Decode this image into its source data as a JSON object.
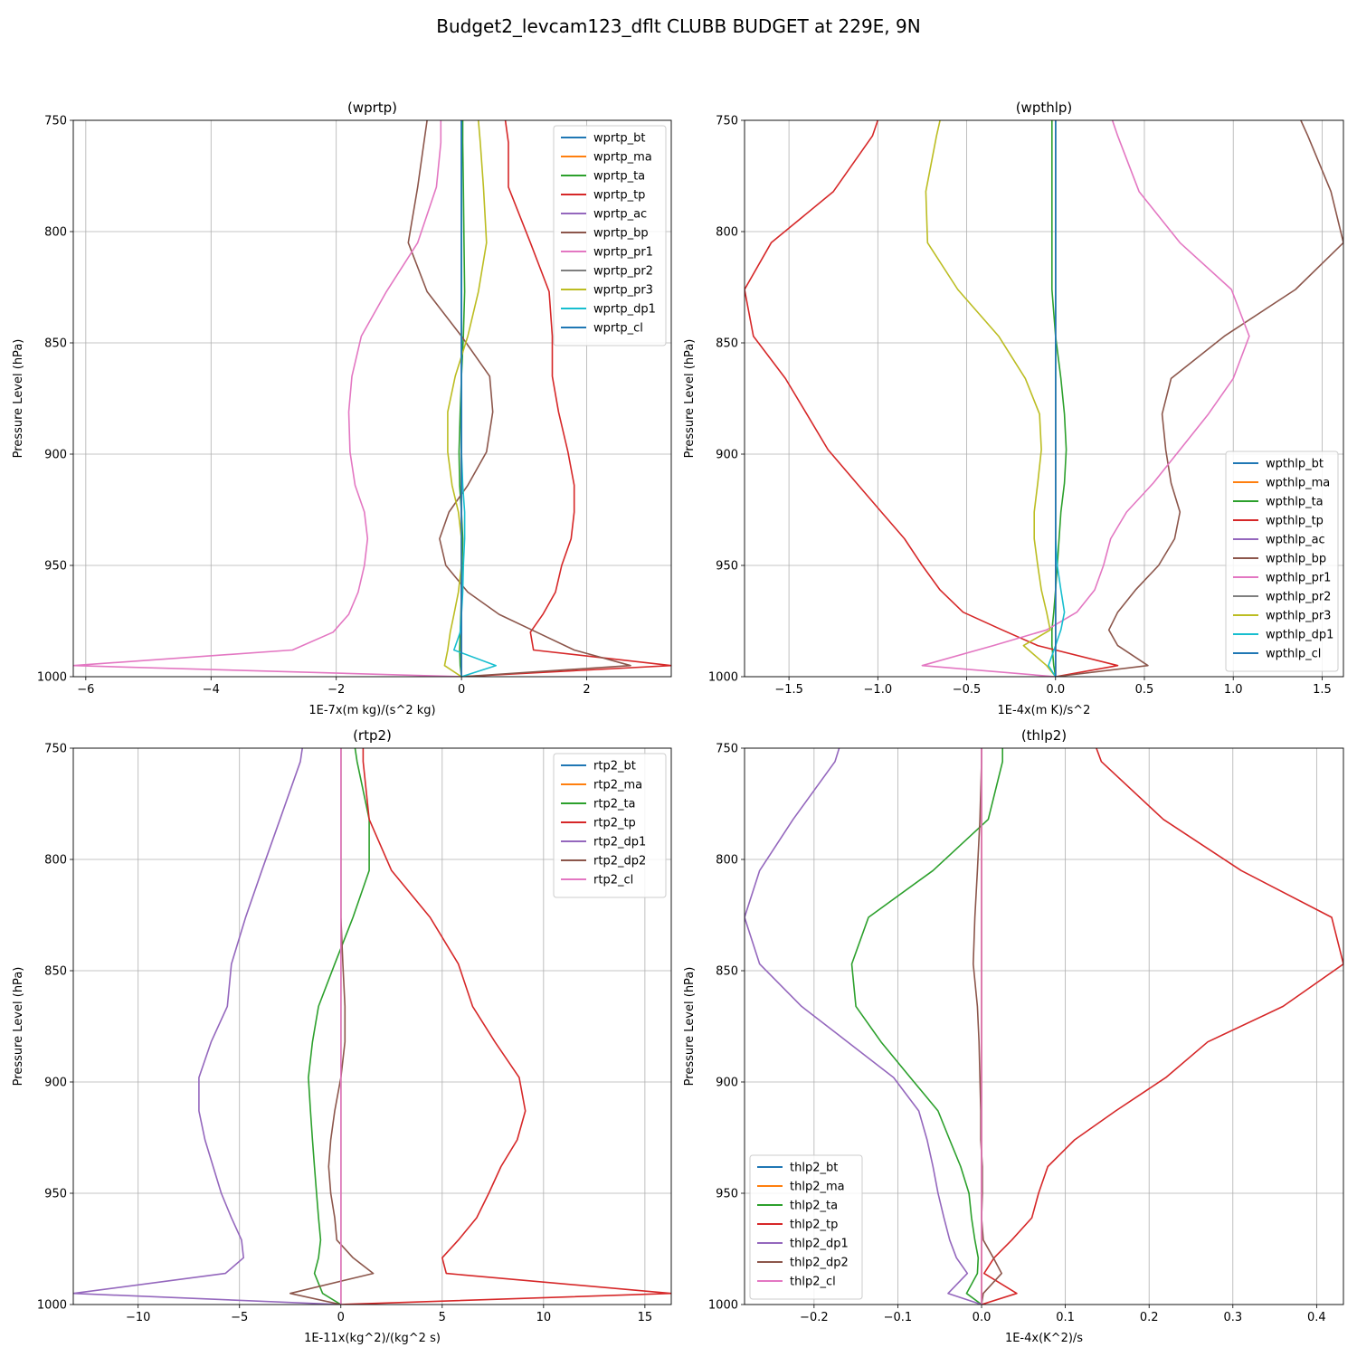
{
  "suptitle": "Budget2_levcam123_dflt CLUBB BUDGET at 229E, 9N",
  "chart_data": [
    {
      "type": "line",
      "title": "(wprtp)",
      "xlabel": "1E-7x(m kg)/(s^2 kg)",
      "ylabel": "Pressure Level (hPa)",
      "xlim": [
        -6.2,
        3.35
      ],
      "ylim": [
        1000,
        750
      ],
      "xticks": [
        -6,
        -4,
        -2,
        0,
        2
      ],
      "yticks": [
        750,
        800,
        850,
        900,
        950,
        1000
      ],
      "grid": true,
      "legend_loc": "upper right",
      "pressure_levels": [
        750,
        760,
        780,
        805,
        827,
        847,
        865,
        881,
        899,
        914,
        926,
        938,
        950,
        962,
        972,
        980,
        988,
        995,
        1000
      ],
      "series": [
        {
          "name": "wprtp_bt",
          "color": "#1f77b4",
          "values": [
            0,
            0,
            0,
            0,
            0,
            0,
            0,
            0,
            0,
            0,
            0,
            0,
            0,
            0,
            0,
            0,
            0,
            0,
            0
          ]
        },
        {
          "name": "wprtp_ma",
          "color": "#ff7f0e",
          "values": [
            0,
            0,
            0,
            0,
            0,
            0,
            0,
            0,
            0,
            0,
            0,
            0,
            0,
            0,
            0,
            0,
            0,
            0,
            0
          ]
        },
        {
          "name": "wprtp_ta",
          "color": "#2ca02c",
          "values": [
            0.02,
            0.02,
            0.03,
            0.04,
            0.05,
            0.03,
            0.0,
            -0.02,
            -0.04,
            -0.03,
            0.0,
            0.02,
            0.01,
            0.0,
            -0.01,
            -0.02,
            -0.03,
            -0.02,
            0
          ]
        },
        {
          "name": "wprtp_tp",
          "color": "#d62728",
          "values": [
            0.7,
            0.75,
            0.75,
            1.1,
            1.4,
            1.45,
            1.45,
            1.55,
            1.7,
            1.8,
            1.8,
            1.75,
            1.6,
            1.5,
            1.3,
            1.1,
            1.15,
            3.35,
            0
          ]
        },
        {
          "name": "wprtp_ac",
          "color": "#9467bd",
          "values": [
            0,
            0,
            0,
            0,
            0,
            0,
            0,
            0,
            0,
            0,
            0,
            0,
            0,
            0,
            0,
            0,
            0,
            0,
            0
          ]
        },
        {
          "name": "wprtp_bp",
          "color": "#8c564b",
          "values": [
            -0.55,
            -0.6,
            -0.7,
            -0.85,
            -0.55,
            0.0,
            0.45,
            0.5,
            0.4,
            0.1,
            -0.2,
            -0.35,
            -0.25,
            0.1,
            0.6,
            1.2,
            1.8,
            2.7,
            0
          ]
        },
        {
          "name": "wprtp_pr1",
          "color": "#e377c2",
          "values": [
            -0.33,
            -0.33,
            -0.4,
            -0.7,
            -1.2,
            -1.6,
            -1.75,
            -1.8,
            -1.78,
            -1.7,
            -1.55,
            -1.5,
            -1.55,
            -1.65,
            -1.8,
            -2.05,
            -2.7,
            -6.2,
            0
          ]
        },
        {
          "name": "wprtp_pr2",
          "color": "#7f7f7f",
          "values": [
            0,
            0,
            0,
            0,
            0,
            0,
            0,
            0,
            0,
            0,
            0,
            0,
            0,
            0,
            0,
            0,
            0,
            0,
            0
          ]
        },
        {
          "name": "wprtp_pr3",
          "color": "#bcbd22",
          "values": [
            0.27,
            0.3,
            0.35,
            0.4,
            0.27,
            0.1,
            -0.1,
            -0.22,
            -0.22,
            -0.15,
            -0.05,
            0.0,
            0.0,
            -0.05,
            -0.12,
            -0.18,
            -0.22,
            -0.27,
            0
          ]
        },
        {
          "name": "wprtp_dp1",
          "color": "#17becf",
          "values": [
            0,
            0,
            0,
            0,
            0,
            0,
            0,
            0,
            0,
            0.02,
            0.05,
            0.05,
            0.03,
            0.02,
            0.0,
            -0.02,
            -0.12,
            0.55,
            0
          ]
        },
        {
          "name": "wprtp_cl",
          "color": "#1f77b4",
          "values": [
            0,
            0,
            0,
            0,
            0,
            0,
            0,
            0,
            0,
            0,
            0,
            0,
            0,
            0,
            0,
            0,
            0,
            0,
            0
          ]
        }
      ]
    },
    {
      "type": "line",
      "title": "(wpthlp)",
      "xlabel": "1E-4x(m K)/s^2",
      "ylabel": "Pressure Level (hPa)",
      "xlim": [
        -1.75,
        1.62
      ],
      "ylim": [
        1000,
        750
      ],
      "xticks": [
        -1.5,
        -1.0,
        -0.5,
        0.0,
        0.5,
        1.0,
        1.5
      ],
      "yticks": [
        750,
        800,
        850,
        900,
        950,
        1000
      ],
      "grid": true,
      "legend_loc": "lower right",
      "pressure_levels": [
        750,
        757,
        782,
        805,
        826,
        847,
        866,
        882,
        898,
        913,
        926,
        938,
        950,
        961,
        971,
        979,
        986,
        995,
        1000
      ],
      "series": [
        {
          "name": "wpthlp_bt",
          "color": "#1f77b4",
          "values": [
            0,
            0,
            0,
            0,
            0,
            0,
            0,
            0,
            0,
            0,
            0,
            0,
            0,
            0,
            0,
            0,
            0,
            0,
            0
          ]
        },
        {
          "name": "wpthlp_ma",
          "color": "#ff7f0e",
          "values": [
            0,
            0,
            0,
            0,
            0,
            0,
            0,
            0,
            0,
            0,
            0,
            0,
            0,
            0,
            0,
            0,
            0,
            0,
            0
          ]
        },
        {
          "name": "wpthlp_ta",
          "color": "#2ca02c",
          "values": [
            -0.02,
            -0.02,
            -0.02,
            -0.02,
            -0.02,
            0.0,
            0.03,
            0.05,
            0.06,
            0.05,
            0.03,
            0.02,
            0.01,
            0.0,
            -0.01,
            -0.02,
            -0.02,
            -0.01,
            0
          ]
        },
        {
          "name": "wpthlp_tp",
          "color": "#d62728",
          "values": [
            -1.0,
            -1.03,
            -1.25,
            -1.6,
            -1.75,
            -1.7,
            -1.52,
            -1.4,
            -1.28,
            -1.12,
            -0.98,
            -0.85,
            -0.75,
            -0.65,
            -0.52,
            -0.3,
            -0.1,
            0.35,
            0
          ]
        },
        {
          "name": "wpthlp_ac",
          "color": "#9467bd",
          "values": [
            0,
            0,
            0,
            0,
            0,
            0,
            0,
            0,
            0,
            0,
            0,
            0,
            0,
            0,
            0,
            0,
            0,
            0,
            0
          ]
        },
        {
          "name": "wpthlp_bp",
          "color": "#8c564b",
          "values": [
            1.38,
            1.42,
            1.55,
            1.62,
            1.35,
            0.95,
            0.65,
            0.6,
            0.62,
            0.65,
            0.7,
            0.67,
            0.58,
            0.45,
            0.35,
            0.3,
            0.35,
            0.52,
            0
          ]
        },
        {
          "name": "wpthlp_pr1",
          "color": "#e377c2",
          "values": [
            0.32,
            0.35,
            0.47,
            0.7,
            0.99,
            1.09,
            1.0,
            0.86,
            0.7,
            0.55,
            0.4,
            0.31,
            0.27,
            0.22,
            0.12,
            -0.05,
            -0.35,
            -0.75,
            0
          ]
        },
        {
          "name": "wpthlp_pr2",
          "color": "#7f7f7f",
          "values": [
            0,
            0,
            0,
            0,
            0,
            0,
            0,
            0,
            0,
            0,
            0,
            0,
            0,
            0,
            0,
            0,
            0,
            0,
            0
          ]
        },
        {
          "name": "wpthlp_pr3",
          "color": "#bcbd22",
          "values": [
            -0.65,
            -0.67,
            -0.73,
            -0.72,
            -0.55,
            -0.32,
            -0.17,
            -0.09,
            -0.08,
            -0.1,
            -0.12,
            -0.12,
            -0.1,
            -0.08,
            -0.05,
            -0.03,
            -0.18,
            -0.05,
            0
          ]
        },
        {
          "name": "wpthlp_dp1",
          "color": "#17becf",
          "values": [
            0,
            0,
            0,
            0,
            0,
            0,
            0,
            0,
            0,
            0,
            0,
            0,
            0.01,
            0.03,
            0.05,
            0.03,
            0.0,
            -0.04,
            0
          ]
        },
        {
          "name": "wpthlp_cl",
          "color": "#1f77b4",
          "values": [
            0,
            0,
            0,
            0,
            0,
            0,
            0,
            0,
            0,
            0,
            0,
            0,
            0,
            0,
            0,
            0,
            0,
            0,
            0
          ]
        }
      ]
    },
    {
      "type": "line",
      "title": "(rtp2)",
      "xlabel": "1E-11x(kg^2)/(kg^2 s)",
      "ylabel": "Pressure Level (hPa)",
      "xlim": [
        -13.2,
        16.3
      ],
      "ylim": [
        1000,
        750
      ],
      "xticks": [
        -10,
        -5,
        0,
        5,
        10,
        15
      ],
      "yticks": [
        750,
        800,
        850,
        900,
        950,
        1000
      ],
      "grid": true,
      "legend_loc": "upper right",
      "pressure_levels": [
        750,
        756,
        782,
        805,
        826,
        847,
        866,
        882,
        898,
        913,
        926,
        938,
        950,
        961,
        971,
        979,
        986,
        995,
        1000
      ],
      "series": [
        {
          "name": "rtp2_bt",
          "color": "#1f77b4",
          "values": [
            0,
            0,
            0,
            0,
            0,
            0,
            0,
            0,
            0,
            0,
            0,
            0,
            0,
            0,
            0,
            0,
            0,
            0,
            0
          ]
        },
        {
          "name": "rtp2_ma",
          "color": "#ff7f0e",
          "values": [
            0,
            0,
            0,
            0,
            0,
            0,
            0,
            0,
            0,
            0,
            0,
            0,
            0,
            0,
            0,
            0,
            0,
            0,
            0
          ]
        },
        {
          "name": "rtp2_ta",
          "color": "#2ca02c",
          "values": [
            0.7,
            0.8,
            1.4,
            1.4,
            0.6,
            -0.3,
            -1.1,
            -1.4,
            -1.6,
            -1.5,
            -1.4,
            -1.3,
            -1.2,
            -1.1,
            -1.0,
            -1.1,
            -1.3,
            -0.9,
            0
          ]
        },
        {
          "name": "rtp2_tp",
          "color": "#d62728",
          "values": [
            1.1,
            1.1,
            1.4,
            2.5,
            4.4,
            5.8,
            6.5,
            7.6,
            8.8,
            9.1,
            8.7,
            7.9,
            7.3,
            6.7,
            5.8,
            5.0,
            5.2,
            16.3,
            0
          ]
        },
        {
          "name": "rtp2_dp1",
          "color": "#9467bd",
          "values": [
            -1.9,
            -2.0,
            -3.0,
            -3.9,
            -4.7,
            -5.4,
            -5.6,
            -6.4,
            -7.0,
            -7.0,
            -6.7,
            -6.3,
            -5.9,
            -5.4,
            -4.9,
            -4.8,
            -5.7,
            -13.2,
            0
          ]
        },
        {
          "name": "rtp2_dp2",
          "color": "#8c564b",
          "values": [
            0,
            0,
            0,
            0,
            0,
            0.1,
            0.2,
            0.2,
            0.0,
            -0.3,
            -0.5,
            -0.6,
            -0.5,
            -0.3,
            -0.2,
            0.6,
            1.6,
            -2.5,
            0
          ]
        },
        {
          "name": "rtp2_cl",
          "color": "#e377c2",
          "values": [
            0,
            0,
            0,
            0,
            0,
            0,
            0,
            0,
            0,
            0,
            0,
            0,
            0,
            0,
            0,
            0,
            0,
            0,
            0
          ]
        }
      ]
    },
    {
      "type": "line",
      "title": "(thlp2)",
      "xlabel": "1E-4x(K^2)/s",
      "ylabel": "Pressure Level (hPa)",
      "xlim": [
        -0.283,
        0.432
      ],
      "ylim": [
        1000,
        750
      ],
      "xticks": [
        -0.2,
        -0.1,
        0.0,
        0.1,
        0.2,
        0.3,
        0.4
      ],
      "yticks": [
        750,
        800,
        850,
        900,
        950,
        1000
      ],
      "grid": true,
      "legend_loc": "lower left",
      "pressure_levels": [
        750,
        756,
        782,
        805,
        826,
        847,
        866,
        882,
        898,
        913,
        926,
        938,
        950,
        961,
        971,
        979,
        986,
        995,
        1000
      ],
      "series": [
        {
          "name": "thlp2_bt",
          "color": "#1f77b4",
          "values": [
            0,
            0,
            0,
            0,
            0,
            0,
            0,
            0,
            0,
            0,
            0,
            0,
            0,
            0,
            0,
            0,
            0,
            0,
            0
          ]
        },
        {
          "name": "thlp2_ma",
          "color": "#ff7f0e",
          "values": [
            0,
            0,
            0,
            0,
            0,
            0,
            0,
            0,
            0,
            0,
            0,
            0,
            0,
            0,
            0,
            0,
            0,
            0,
            0
          ]
        },
        {
          "name": "thlp2_ta",
          "color": "#2ca02c",
          "values": [
            0.025,
            0.025,
            0.008,
            -0.058,
            -0.135,
            -0.155,
            -0.15,
            -0.12,
            -0.085,
            -0.052,
            -0.038,
            -0.025,
            -0.015,
            -0.012,
            -0.008,
            -0.004,
            -0.005,
            -0.018,
            0
          ]
        },
        {
          "name": "thlp2_tp",
          "color": "#d62728",
          "values": [
            0.137,
            0.143,
            0.217,
            0.31,
            0.418,
            0.432,
            0.36,
            0.27,
            0.22,
            0.16,
            0.111,
            0.079,
            0.068,
            0.06,
            0.036,
            0.015,
            0.003,
            0.042,
            0
          ]
        },
        {
          "name": "thlp2_dp1",
          "color": "#9467bd",
          "values": [
            -0.17,
            -0.175,
            -0.225,
            -0.265,
            -0.283,
            -0.265,
            -0.215,
            -0.16,
            -0.105,
            -0.075,
            -0.065,
            -0.058,
            -0.052,
            -0.045,
            -0.038,
            -0.03,
            -0.017,
            -0.04,
            0
          ]
        },
        {
          "name": "thlp2_dp2",
          "color": "#8c564b",
          "values": [
            0.0,
            0.0,
            -0.002,
            -0.005,
            -0.008,
            -0.01,
            -0.005,
            -0.003,
            -0.002,
            -0.001,
            -0.001,
            0.001,
            0.001,
            0.0,
            0.002,
            0.014,
            0.024,
            0.002,
            0
          ]
        },
        {
          "name": "thlp2_cl",
          "color": "#e377c2",
          "values": [
            0,
            0,
            0,
            0,
            0,
            0,
            0,
            0,
            0,
            0,
            0,
            0,
            0,
            0,
            0,
            0,
            0,
            0,
            0
          ]
        }
      ]
    }
  ]
}
